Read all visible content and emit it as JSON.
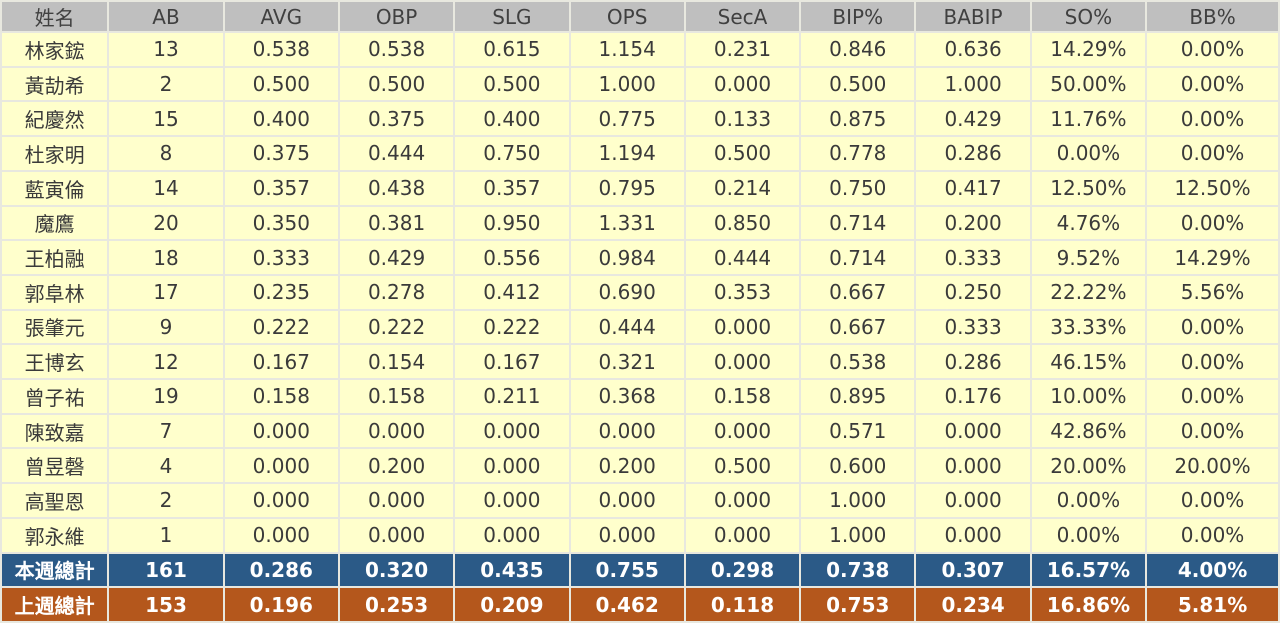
{
  "chart_data": {
    "type": "table",
    "title": "",
    "columns": [
      "姓名",
      "AB",
      "AVG",
      "OBP",
      "SLG",
      "OPS",
      "SecA",
      "BIP%",
      "BABIP",
      "SO%",
      "BB%"
    ],
    "players": [
      {
        "name": "林家鋐",
        "values": [
          "13",
          "0.538",
          "0.538",
          "0.615",
          "1.154",
          "0.231",
          "0.846",
          "0.636",
          "14.29%",
          "0.00%"
        ]
      },
      {
        "name": "黃劼希",
        "values": [
          "2",
          "0.500",
          "0.500",
          "0.500",
          "1.000",
          "0.000",
          "0.500",
          "1.000",
          "50.00%",
          "0.00%"
        ]
      },
      {
        "name": "紀慶然",
        "values": [
          "15",
          "0.400",
          "0.375",
          "0.400",
          "0.775",
          "0.133",
          "0.875",
          "0.429",
          "11.76%",
          "0.00%"
        ]
      },
      {
        "name": "杜家明",
        "values": [
          "8",
          "0.375",
          "0.444",
          "0.750",
          "1.194",
          "0.500",
          "0.778",
          "0.286",
          "0.00%",
          "0.00%"
        ]
      },
      {
        "name": "藍寅倫",
        "values": [
          "14",
          "0.357",
          "0.438",
          "0.357",
          "0.795",
          "0.214",
          "0.750",
          "0.417",
          "12.50%",
          "12.50%"
        ]
      },
      {
        "name": "魔鷹",
        "values": [
          "20",
          "0.350",
          "0.381",
          "0.950",
          "1.331",
          "0.850",
          "0.714",
          "0.200",
          "4.76%",
          "0.00%"
        ]
      },
      {
        "name": "王柏融",
        "values": [
          "18",
          "0.333",
          "0.429",
          "0.556",
          "0.984",
          "0.444",
          "0.714",
          "0.333",
          "9.52%",
          "14.29%"
        ]
      },
      {
        "name": "郭阜林",
        "values": [
          "17",
          "0.235",
          "0.278",
          "0.412",
          "0.690",
          "0.353",
          "0.667",
          "0.250",
          "22.22%",
          "5.56%"
        ]
      },
      {
        "name": "張肇元",
        "values": [
          "9",
          "0.222",
          "0.222",
          "0.222",
          "0.444",
          "0.000",
          "0.667",
          "0.333",
          "33.33%",
          "0.00%"
        ]
      },
      {
        "name": "王博玄",
        "values": [
          "12",
          "0.167",
          "0.154",
          "0.167",
          "0.321",
          "0.000",
          "0.538",
          "0.286",
          "46.15%",
          "0.00%"
        ]
      },
      {
        "name": "曾子祐",
        "values": [
          "19",
          "0.158",
          "0.158",
          "0.211",
          "0.368",
          "0.158",
          "0.895",
          "0.176",
          "10.00%",
          "0.00%"
        ]
      },
      {
        "name": "陳致嘉",
        "values": [
          "7",
          "0.000",
          "0.000",
          "0.000",
          "0.000",
          "0.000",
          "0.571",
          "0.000",
          "42.86%",
          "0.00%"
        ]
      },
      {
        "name": "曾昱磬",
        "values": [
          "4",
          "0.000",
          "0.200",
          "0.000",
          "0.200",
          "0.500",
          "0.600",
          "0.000",
          "20.00%",
          "20.00%"
        ]
      },
      {
        "name": "高聖恩",
        "values": [
          "2",
          "0.000",
          "0.000",
          "0.000",
          "0.000",
          "0.000",
          "1.000",
          "0.000",
          "0.00%",
          "0.00%"
        ]
      },
      {
        "name": "郭永維",
        "values": [
          "1",
          "0.000",
          "0.000",
          "0.000",
          "0.000",
          "0.000",
          "1.000",
          "0.000",
          "0.00%",
          "0.00%"
        ]
      }
    ],
    "totals": [
      {
        "label": "本週總計",
        "style": "this-week",
        "values": [
          "161",
          "0.286",
          "0.320",
          "0.435",
          "0.755",
          "0.298",
          "0.738",
          "0.307",
          "16.57%",
          "4.00%"
        ]
      },
      {
        "label": "上週總計",
        "style": "last-week",
        "values": [
          "153",
          "0.196",
          "0.253",
          "0.209",
          "0.462",
          "0.118",
          "0.753",
          "0.234",
          "16.86%",
          "5.81%"
        ]
      }
    ]
  },
  "colors": {
    "header_bg": "#BFBFBF",
    "row_bg": "#FFFFCC",
    "this_week_bg": "#2B5A87",
    "last_week_bg": "#B4571C",
    "border": "#E8E8DF",
    "text": "#3A3A3A",
    "totals_text": "#FFFFFF"
  }
}
